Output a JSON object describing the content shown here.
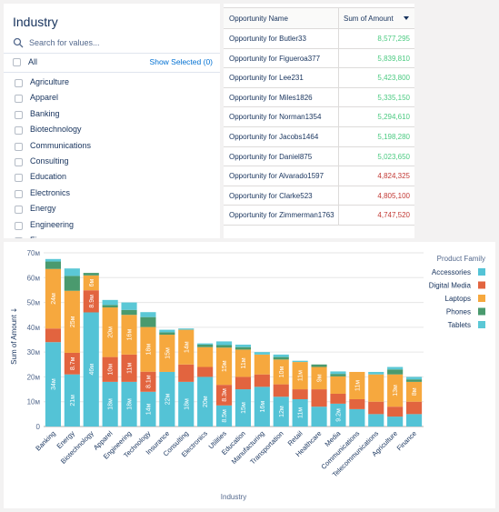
{
  "filter": {
    "title": "Industry",
    "search_placeholder": "Search for values...",
    "all_label": "All",
    "show_selected_label": "Show Selected (0)",
    "items": [
      "Agriculture",
      "Apparel",
      "Banking",
      "Biotechnology",
      "Communications",
      "Consulting",
      "Education",
      "Electronics",
      "Energy",
      "Engineering",
      "Finance"
    ]
  },
  "table": {
    "col_name": "Opportunity Name",
    "col_sum": "Sum of Amount",
    "positive_color": "#4bca81",
    "negative_color": "#c23934",
    "rows": [
      {
        "name": "Opportunity for Butler33",
        "value": "8,577,295",
        "status": "high"
      },
      {
        "name": "Opportunity for Figueroa377",
        "value": "5,839,810",
        "status": "high"
      },
      {
        "name": "Opportunity for Lee231",
        "value": "5,423,800",
        "status": "high"
      },
      {
        "name": "Opportunity for Miles1826",
        "value": "5,335,150",
        "status": "high"
      },
      {
        "name": "Opportunity for Norman1354",
        "value": "5,294,610",
        "status": "high"
      },
      {
        "name": "Opportunity for Jacobs1464",
        "value": "5,198,280",
        "status": "high"
      },
      {
        "name": "Opportunity for Daniel875",
        "value": "5,023,650",
        "status": "high"
      },
      {
        "name": "Opportunity for Alvarado1597",
        "value": "4,824,325",
        "status": "low"
      },
      {
        "name": "Opportunity for Clarke523",
        "value": "4,805,100",
        "status": "low"
      },
      {
        "name": "Opportunity for Zimmerman1763",
        "value": "4,747,520",
        "status": "low"
      }
    ]
  },
  "chart_data": {
    "type": "bar",
    "stacked": true,
    "xlabel": "Industry",
    "ylabel": "Sum of Amount",
    "ylim": [
      0,
      70
    ],
    "yticks": [
      "0",
      "10м",
      "20м",
      "30м",
      "40м",
      "50м",
      "60м",
      "70м"
    ],
    "legend_title": "Product Family",
    "legend_position": "right",
    "categories": [
      "Banking",
      "Energy",
      "Biotechnology",
      "Apparel",
      "Engineering",
      "Technology",
      "Insurance",
      "Consulting",
      "Electronics",
      "Utilities",
      "Education",
      "Manufacturing",
      "Transportation",
      "Retail",
      "Healthcare",
      "Media",
      "Communications",
      "Telecommunications",
      "Agriculture",
      "Finance"
    ],
    "series": [
      {
        "name": "Accessories",
        "color": "#54c3d6",
        "values": [
          34,
          21,
          46,
          18,
          18,
          14,
          22,
          18,
          20,
          8.5,
          15,
          16,
          12,
          11,
          8,
          9.2,
          7,
          5,
          4,
          5
        ],
        "labels": [
          "34м",
          "21м",
          "46м",
          "18м",
          "18м",
          "14м",
          "22м",
          "18м",
          "20м",
          "8.5м",
          "15м",
          "16м",
          "12м",
          "11м",
          "",
          "9.2м",
          "",
          "",
          "",
          ""
        ]
      },
      {
        "name": "Digital Media",
        "color": "#e2643f",
        "values": [
          5.5,
          8.7,
          8.9,
          10,
          11,
          8.1,
          0,
          7,
          4,
          8.3,
          5,
          5,
          5,
          4,
          7,
          4,
          4,
          5,
          4,
          5
        ],
        "labels": [
          "",
          "8.7м",
          "8.9м",
          "10м",
          "11м",
          "8.1м",
          "",
          "",
          "",
          "8.3м",
          "",
          "",
          "",
          "",
          "",
          "",
          "",
          "",
          "",
          ""
        ]
      },
      {
        "name": "Laptops",
        "color": "#f6a83e",
        "values": [
          24,
          25,
          6,
          20,
          16,
          18,
          15,
          14,
          8,
          15,
          11,
          8,
          10,
          11,
          9,
          7,
          11,
          11,
          13,
          8
        ],
        "labels": [
          "24м",
          "25м",
          "6м",
          "20м",
          "16м",
          "18м",
          "15м",
          "14м",
          "",
          "15м",
          "11м",
          "",
          "10м",
          "11м",
          "9м",
          "",
          "11м",
          "",
          "13м",
          "8м"
        ]
      },
      {
        "name": "Phones",
        "color": "#4a9a6e",
        "values": [
          3,
          6,
          1,
          1,
          2,
          4,
          1,
          0,
          1,
          1,
          1,
          0,
          1,
          0,
          1,
          1,
          0,
          0,
          2,
          1
        ],
        "labels": [
          "",
          "",
          "",
          "",
          "",
          "",
          "",
          "",
          "",
          "",
          "",
          "",
          "",
          "",
          "",
          "",
          "",
          "",
          "",
          ""
        ]
      },
      {
        "name": "Tablets",
        "color": "#5bc8d6",
        "values": [
          1,
          3,
          0,
          2,
          3,
          2,
          1,
          0.5,
          0.5,
          1.5,
          1,
          1,
          1,
          0.5,
          0,
          1,
          0,
          1,
          1,
          1
        ],
        "labels": [
          "",
          "",
          "",
          "",
          "",
          "",
          "",
          "",
          "",
          "",
          "",
          "",
          "",
          "",
          "",
          "",
          "",
          "",
          "",
          ""
        ]
      }
    ]
  }
}
